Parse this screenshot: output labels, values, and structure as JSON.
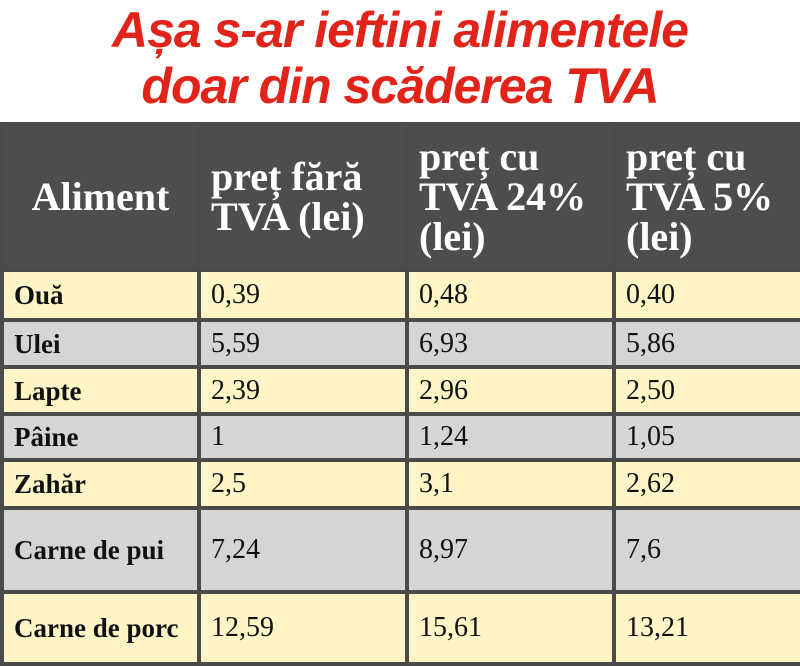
{
  "header": {
    "title": [
      "Așa s-ar ieftini alimentele",
      "doar din scăderea TVA"
    ]
  },
  "table": {
    "columns": [
      "Aliment",
      "preț fără TVA (lei)",
      "preț cu TVA 24% (lei)",
      "preț cu TVA 5% (lei)"
    ],
    "rows": [
      [
        "Ouă",
        "0,39",
        "0,48",
        "0,40"
      ],
      [
        "Ulei",
        "5,59",
        "6,93",
        "5,86"
      ],
      [
        "Lapte",
        "2,39",
        "2,96",
        "2,50"
      ],
      [
        "Pâine",
        "1",
        "1,24",
        "1,05"
      ],
      [
        "Zahăr",
        "2,5",
        "3,1",
        "2,62"
      ],
      [
        "Carne de pui",
        "7,24",
        "8,97",
        "7,6"
      ],
      [
        "Carne de porc",
        "12,59",
        "15,61",
        "13,21"
      ]
    ]
  }
}
